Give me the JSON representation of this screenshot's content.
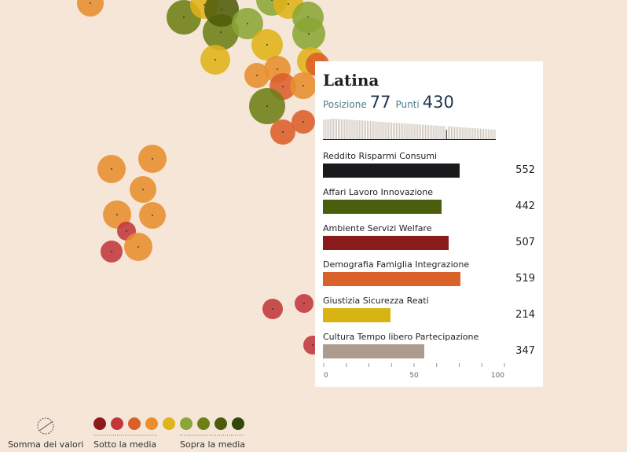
{
  "tooltip": {
    "title": "Latina",
    "position_label": "Posizione",
    "position_value": "77",
    "points_label": "Punti",
    "points_value": "430",
    "categories": [
      {
        "label": "Reddito Risparmi Consumi",
        "value": 552,
        "score": 75,
        "color": "#1a1a1c"
      },
      {
        "label": "Affari Lavoro Innovazione",
        "value": 442,
        "score": 65,
        "color": "#4b5e0e"
      },
      {
        "label": "Ambiente Servizi Welfare",
        "value": 507,
        "score": 69,
        "color": "#8a1a1b"
      },
      {
        "label": "Demografia Famiglia Integrazione",
        "value": 519,
        "score": 75.5,
        "color": "#d9622a"
      },
      {
        "label": "Giustizia Sicurezza Reati",
        "value": 214,
        "score": 37,
        "color": "#d8b412"
      },
      {
        "label": "Cultura Tempo libero Partecipazione",
        "value": 347,
        "score": 55.5,
        "color": "#ad9c8d"
      }
    ],
    "axis": {
      "ticks": [
        "0",
        "50",
        "100"
      ]
    }
  },
  "legend": {
    "sum_label": "Somma dei valori",
    "below_label": "Sotto la media",
    "above_label": "Sopra la media",
    "colors": [
      "#8c1a1b",
      "#c0383a",
      "#dc5f2a",
      "#e88e2d",
      "#e0b318",
      "#8aa636",
      "#6d8016",
      "#4e5c0a",
      "#33470a"
    ]
  }
}
